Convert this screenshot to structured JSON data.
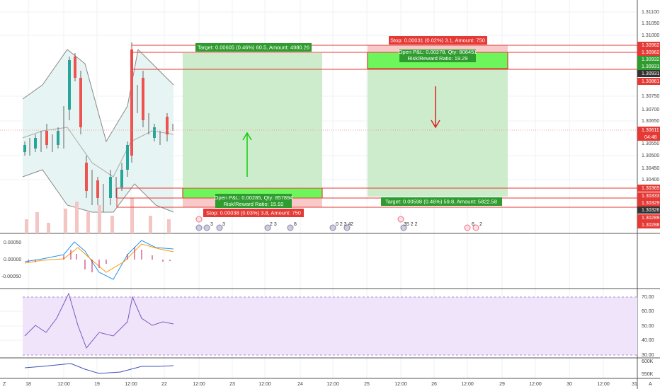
{
  "price_axis": [
    "1.31100",
    "1.31050",
    "1.31000",
    "1.30962",
    "1.30962",
    "1.30932",
    "1.30931",
    "1.30931",
    "1.30861",
    "1.30750",
    "1.30700",
    "1.30650",
    "1.30611",
    "04:48",
    "1.30550",
    "1.30500",
    "1.30450",
    "1.30400",
    "1.30369",
    "1.30333",
    "1.30329",
    "1.30326",
    "1.30289",
    "1.30288"
  ],
  "macd_axis": [
    "0.00050",
    "0.00000",
    "-0.00050"
  ],
  "rsi_axis": [
    "70.00",
    "60.00",
    "50.00",
    "40.00",
    "30.00"
  ],
  "volume_axis": [
    "600K",
    "550K"
  ],
  "time_axis": [
    "18",
    "12:00",
    "19",
    "12:00",
    "22",
    "12:00",
    "23",
    "12:00",
    "24",
    "12:00",
    "25",
    "12:00",
    "26",
    "12:00",
    "29",
    "12:00",
    "30",
    "12:00",
    "31"
  ],
  "corner_left": "Z",
  "corner_right": "A",
  "long_position": {
    "target": "Target: 0.00605 (0.46%) 60.5, Amount: 4980.26",
    "open_pl": "Open P&L: 0.00285, Qty: 857894",
    "ratio": "Risk/Reward Ratio: 15.92",
    "stop": "Stop: 0.00038 (0.03%) 3.8, Amount: 750"
  },
  "short_position": {
    "stop": "Stop: 0.00031 (0.02%) 3.1, Amount: 750",
    "open_pl": "Open P&L: 0.00278, Qty: 806451",
    "ratio": "Risk/Reward Ratio: 19.29",
    "target": "Target: 0.00598 (0.46%) 59.8, Amount: 5822.58"
  },
  "events": [
    "3",
    "3",
    "2 3",
    "8",
    "0 2 3 4",
    "2",
    "35 2 2",
    "6",
    "2"
  ]
}
